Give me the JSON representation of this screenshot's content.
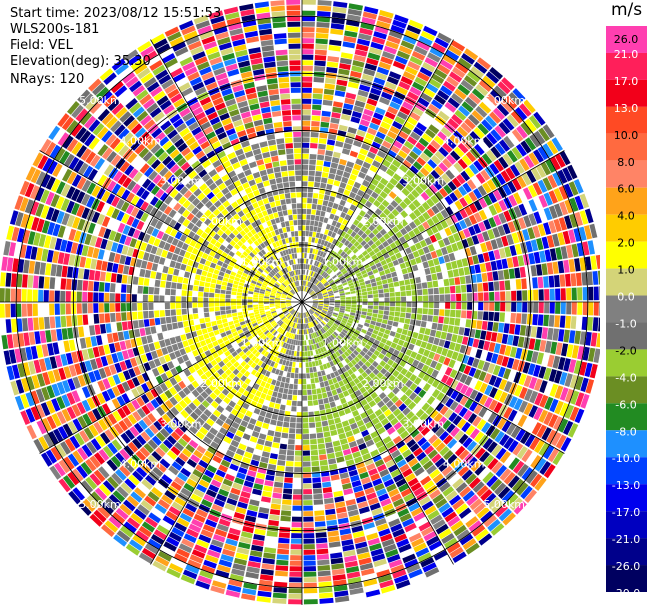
{
  "info": {
    "start_time": "Start time: 2023/08/12 15:51:53",
    "station": "WLS200s-181",
    "field": "Field: VEL",
    "elevation": "Elevation(deg): 35.30",
    "nrays": "NRays: 120"
  },
  "chart_data": {
    "type": "heatmap",
    "projection": "polar-ppi",
    "title": "",
    "range_rings_km": [
      1.0,
      2.0,
      3.0,
      4.0,
      5.0
    ],
    "range_label_suffix": "km",
    "max_range_km": 5.3,
    "spokes_deg": [
      0,
      30,
      60,
      90,
      120,
      150,
      180,
      210,
      240,
      270,
      300,
      330
    ],
    "n_rays": 120,
    "n_gates": 55,
    "colorbar": {
      "unit": "m/s",
      "ticks": [
        "26.0",
        "21.0",
        "17.0",
        "13.0",
        "10.0",
        "8.0",
        "6.0",
        "4.0",
        "2.0",
        "1.0",
        "0.0",
        "-1.0",
        "-2.0",
        "-4.0",
        "-6.0",
        "-8.0",
        "-10.0",
        "-13.0",
        "-17.0",
        "-21.0",
        "-26.0",
        "-30.0"
      ],
      "colors": [
        "#ff3fb0",
        "#ff1f5a",
        "#f2001a",
        "#ff4a24",
        "#ff6a40",
        "#ff8466",
        "#ffa31a",
        "#ffcc00",
        "#ffff00",
        "#d4d478",
        "#808080",
        "#707070",
        "#9acd32",
        "#6b8e23",
        "#228b22",
        "#1e90ff",
        "#0040ff",
        "#0000ee",
        "#0000c0",
        "#00008b",
        "#000060"
      ]
    },
    "regions": {
      "near_range_km": 3.0,
      "inner_clear_km": 0.18,
      "noise_from_km": 3.0
    }
  }
}
